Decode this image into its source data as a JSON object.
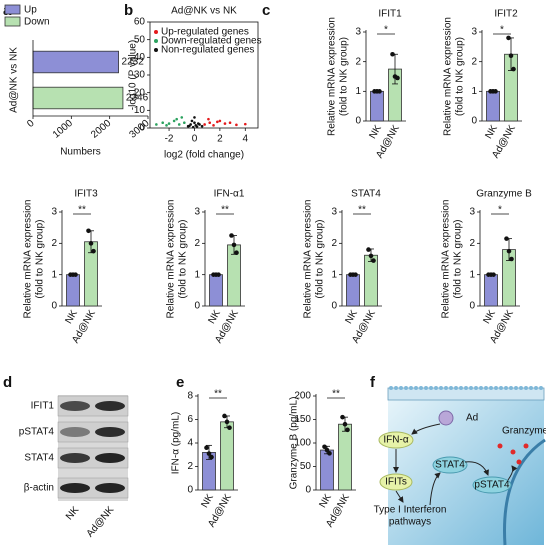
{
  "panel_labels": [
    "a",
    "b",
    "c",
    "d",
    "e",
    "f"
  ],
  "chart_data": [
    {
      "type": "hbar",
      "categories": [
        "Up",
        "Down"
      ],
      "values": [
        2232,
        2346
      ],
      "colors": [
        "#8d8fd6",
        "#b7e1b1"
      ],
      "ylabel": [
        "Ad@NK vs NK"
      ],
      "xlabel": "Numbers",
      "xlim": [
        0,
        3000
      ],
      "xticks": [
        0,
        1000,
        2000,
        3000
      ]
    },
    {
      "type": "scatter",
      "title": "Ad@NK vs NK",
      "xlabel": "log2 (fold change)",
      "ylabel": [
        "-log10 (P value)"
      ],
      "xlim": [
        -3.5,
        5
      ],
      "xticks": [
        -2,
        0,
        2,
        4
      ],
      "ylim": [
        0,
        60
      ],
      "yticks": [
        0,
        10,
        20,
        30,
        40,
        50,
        60
      ],
      "series": [
        {
          "name": "Up-regulated genes",
          "color": "#e41a1c",
          "x": [
            0.8,
            1.2,
            1.5,
            2.0,
            2.4,
            2.8,
            3.3,
            4.0,
            1.1,
            1.8
          ],
          "values": [
            2,
            3,
            1.5,
            4,
            2.5,
            3,
            1.8,
            2.2,
            5,
            3.5
          ]
        },
        {
          "name": "Down-regulated genes",
          "color": "#2ca25f",
          "x": [
            -0.8,
            -1.2,
            -1.6,
            -2.0,
            -2.5,
            -3.0,
            -1.0,
            -1.4,
            -2.2
          ],
          "values": [
            3,
            2,
            4,
            2.5,
            3,
            2,
            6,
            5,
            1.5
          ]
        },
        {
          "name": "Non-regulated genes",
          "color": "#111111",
          "x": [
            -0.5,
            -0.3,
            -0.1,
            0,
            0.1,
            0.2,
            0.4,
            0.6,
            -0.2,
            0.3,
            0.0,
            -0.4
          ],
          "values": [
            1,
            2,
            0.5,
            3,
            1.5,
            0.8,
            2,
            1,
            4,
            2.5,
            6,
            1.2
          ]
        }
      ]
    },
    {
      "type": "bar",
      "title": "IFIT1",
      "ylabel": [
        "Relative mRNA expression",
        "(fold to NK group)"
      ],
      "categories": [
        "NK",
        "Ad@NK"
      ],
      "values": [
        1,
        1.75
      ],
      "errors": [
        0.02,
        0.5
      ],
      "points": [
        [
          1,
          1,
          1
        ],
        [
          2.25,
          1.5,
          1.45
        ]
      ],
      "colors": [
        "#8d8fd6",
        "#b7e1b1"
      ],
      "ylim": [
        0,
        3
      ],
      "yticks": [
        0,
        1,
        2,
        3
      ],
      "significance": "*"
    },
    {
      "type": "bar",
      "title": "IFIT2",
      "ylabel": [
        "Relative mRNA expression",
        "(fold to NK group)"
      ],
      "categories": [
        "NK",
        "Ad@NK"
      ],
      "values": [
        1,
        2.25
      ],
      "errors": [
        0.02,
        0.55
      ],
      "points": [
        [
          1,
          1,
          1
        ],
        [
          2.8,
          2.2,
          1.75
        ]
      ],
      "colors": [
        "#8d8fd6",
        "#b7e1b1"
      ],
      "ylim": [
        0,
        3
      ],
      "yticks": [
        0,
        1,
        2,
        3
      ],
      "significance": "*"
    },
    {
      "type": "bar",
      "title": "IFIT3",
      "ylabel": [
        "Relative mRNA expression",
        "(fold to NK group)"
      ],
      "categories": [
        "NK",
        "Ad@NK"
      ],
      "values": [
        1,
        2.05
      ],
      "errors": [
        0.02,
        0.35
      ],
      "points": [
        [
          1,
          1,
          1
        ],
        [
          2.4,
          2.0,
          1.75
        ]
      ],
      "colors": [
        "#8d8fd6",
        "#b7e1b1"
      ],
      "ylim": [
        0,
        3
      ],
      "yticks": [
        0,
        1,
        2,
        3
      ],
      "significance": "**"
    },
    {
      "type": "bar",
      "title": "IFN-α1",
      "ylabel": [
        "Relative mRNA expression",
        "(fold to NK group)"
      ],
      "categories": [
        "NK",
        "Ad@NK"
      ],
      "values": [
        1,
        1.95
      ],
      "errors": [
        0.02,
        0.3
      ],
      "points": [
        [
          1,
          1,
          1
        ],
        [
          2.25,
          1.95,
          1.7
        ]
      ],
      "colors": [
        "#8d8fd6",
        "#b7e1b1"
      ],
      "ylim": [
        0,
        3
      ],
      "yticks": [
        0,
        1,
        2,
        3
      ],
      "significance": "**"
    },
    {
      "type": "bar",
      "title": "STAT4",
      "ylabel": [
        "Relative mRNA expression",
        "(fold to NK group)"
      ],
      "categories": [
        "NK",
        "Ad@NK"
      ],
      "values": [
        1,
        1.62
      ],
      "errors": [
        0.02,
        0.2
      ],
      "points": [
        [
          1,
          1,
          1
        ],
        [
          1.8,
          1.6,
          1.45
        ]
      ],
      "colors": [
        "#8d8fd6",
        "#b7e1b1"
      ],
      "ylim": [
        0,
        3
      ],
      "yticks": [
        0,
        1,
        2,
        3
      ],
      "significance": "**"
    },
    {
      "type": "bar",
      "title": "Granzyme B",
      "ylabel": [
        "Relative mRNA expression",
        "(fold to NK group)"
      ],
      "categories": [
        "NK",
        "Ad@NK"
      ],
      "values": [
        1,
        1.8
      ],
      "errors": [
        0.02,
        0.35
      ],
      "points": [
        [
          1,
          1,
          1
        ],
        [
          2.15,
          1.75,
          1.5
        ]
      ],
      "colors": [
        "#8d8fd6",
        "#b7e1b1"
      ],
      "ylim": [
        0,
        3
      ],
      "yticks": [
        0,
        1,
        2,
        3
      ],
      "significance": "*"
    },
    {
      "type": "bar",
      "ylabel": [
        "IFN-α (pg/mL)"
      ],
      "categories": [
        "NK",
        "Ad@NK"
      ],
      "values": [
        3.2,
        5.8
      ],
      "errors": [
        0.6,
        0.5
      ],
      "points": [
        [
          3.6,
          3.1,
          2.8
        ],
        [
          6.3,
          5.8,
          5.3
        ]
      ],
      "colors": [
        "#8d8fd6",
        "#b7e1b1"
      ],
      "ylim": [
        0,
        8
      ],
      "yticks": [
        0,
        2,
        4,
        6,
        8
      ],
      "significance": "**"
    },
    {
      "type": "bar",
      "ylabel": [
        "Granzyme B (pg/mL)"
      ],
      "categories": [
        "NK",
        "Ad@NK"
      ],
      "values": [
        85,
        140
      ],
      "errors": [
        8,
        15
      ],
      "points": [
        [
          92,
          85,
          78
        ],
        [
          155,
          140,
          128
        ]
      ],
      "colors": [
        "#8d8fd6",
        "#b7e1b1"
      ],
      "ylim": [
        0,
        200
      ],
      "yticks": [
        0,
        50,
        100,
        150,
        200
      ],
      "significance": "**"
    }
  ],
  "blot": {
    "rows": [
      "IFIT1",
      "pSTAT4",
      "STAT4",
      "β-actin"
    ],
    "lanes": [
      "NK",
      "Ad@NK"
    ]
  },
  "diagram": {
    "labels": [
      "Ad",
      "Granzyme B",
      "IFN-α",
      "IFITs",
      "Type I Interferon",
      "pathways",
      "STAT4",
      "pSTAT4"
    ]
  }
}
